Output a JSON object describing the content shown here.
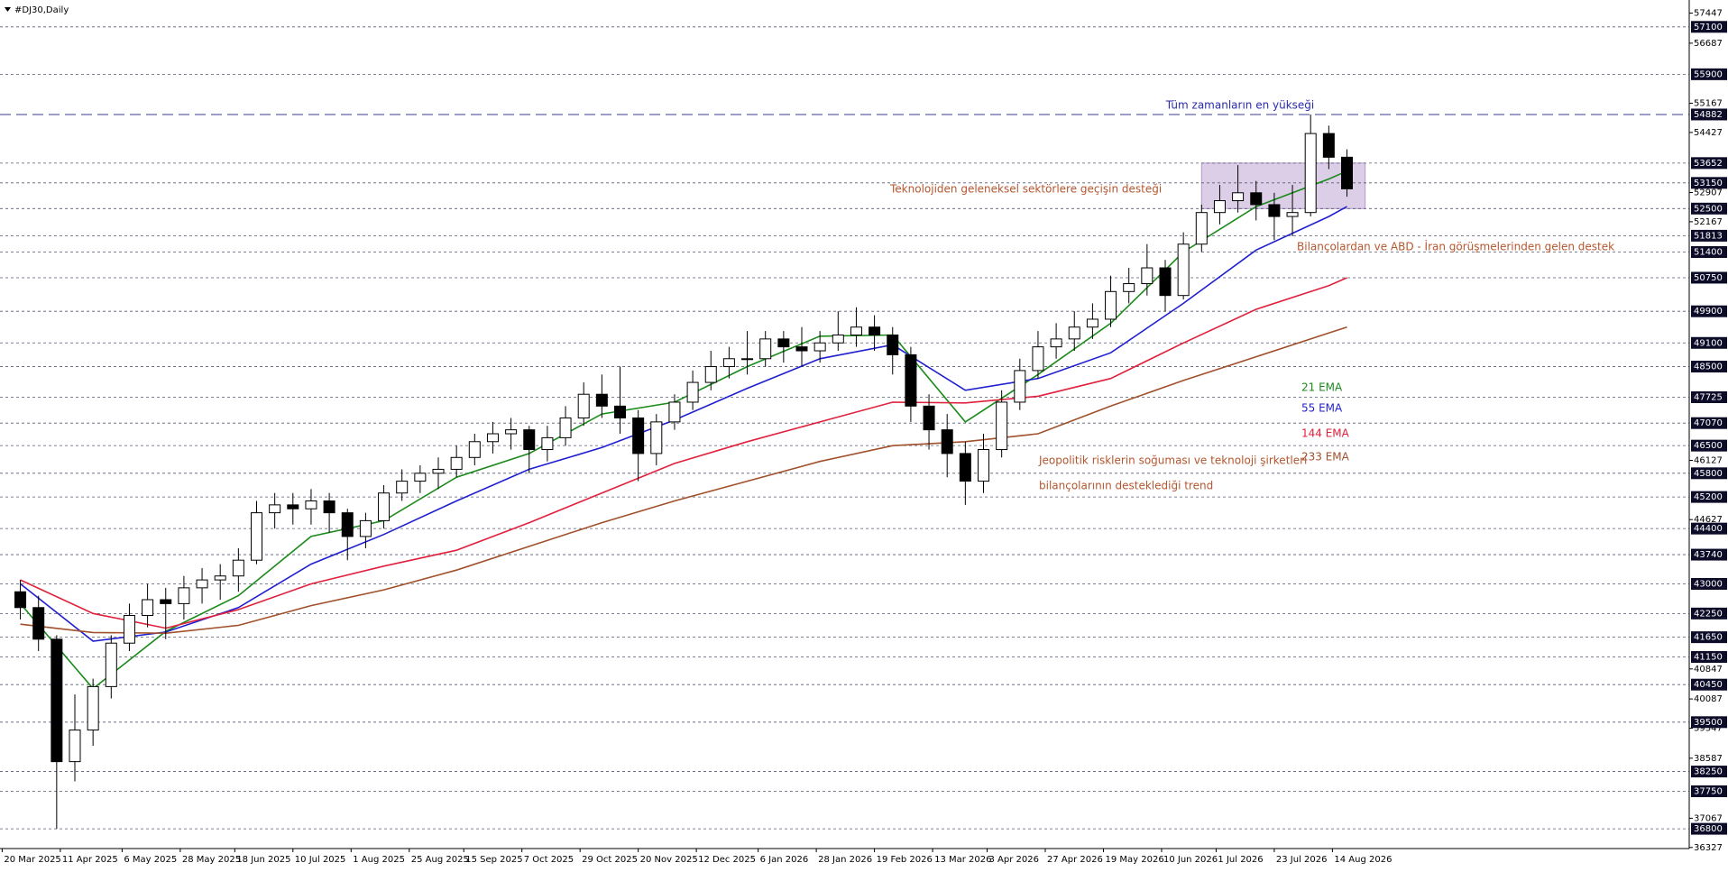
{
  "chart_data": {
    "type": "candlestick",
    "title": "#DJ30,Daily",
    "x": [
      "2025-03-27",
      "2025-04-03",
      "2025-04-10",
      "2025-04-17",
      "2025-04-24",
      "2025-05-01",
      "2025-05-08",
      "2025-05-15",
      "2025-05-22",
      "2025-05-29",
      "2025-06-05",
      "2025-06-12",
      "2025-06-19",
      "2025-06-26",
      "2025-07-03",
      "2025-07-10",
      "2025-07-17",
      "2025-07-24",
      "2025-07-31",
      "2025-08-07",
      "2025-08-14",
      "2025-08-21",
      "2025-08-28",
      "2025-09-04",
      "2025-09-11",
      "2025-09-18",
      "2025-09-25",
      "2025-10-02",
      "2025-10-09",
      "2025-10-16",
      "2025-10-23",
      "2025-10-30",
      "2025-11-06",
      "2025-11-13",
      "2025-11-20",
      "2025-11-27",
      "2025-12-04",
      "2025-12-11",
      "2025-12-18",
      "2025-12-25",
      "2026-01-01",
      "2026-01-08",
      "2026-01-15",
      "2026-01-22",
      "2026-01-29",
      "2026-02-05",
      "2026-02-12",
      "2026-02-19",
      "2026-02-26",
      "2026-03-05",
      "2026-03-12",
      "2026-03-19",
      "2026-03-26",
      "2026-04-02",
      "2026-04-09",
      "2026-04-16",
      "2026-04-23",
      "2026-04-30",
      "2026-05-07",
      "2026-05-14",
      "2026-05-21",
      "2026-05-28",
      "2026-06-04",
      "2026-06-11",
      "2026-06-18",
      "2026-06-25",
      "2026-07-02",
      "2026-07-09",
      "2026-07-16",
      "2026-07-23",
      "2026-07-30",
      "2026-08-06",
      "2026-08-13",
      "2026-08-20"
    ],
    "open": [
      42800,
      42400,
      41600,
      38500,
      39300,
      40400,
      41500,
      42200,
      42600,
      42500,
      42900,
      43100,
      43200,
      43600,
      44800,
      45000,
      44900,
      45100,
      44800,
      44200,
      44600,
      45300,
      45600,
      45800,
      45900,
      46200,
      46600,
      46800,
      46900,
      46400,
      46700,
      47200,
      47800,
      47500,
      47200,
      46300,
      47100,
      47600,
      48100,
      48500,
      48700,
      48700,
      49200,
      49000,
      48900,
      49100,
      49300,
      49500,
      49300,
      48800,
      47500,
      46900,
      46300,
      45600,
      46400,
      47600,
      48400,
      49000,
      49200,
      49500,
      49700,
      50400,
      50600,
      51000,
      50300,
      51600,
      52400,
      52700,
      52900,
      52600,
      52300,
      52400,
      54400,
      53800
    ],
    "high": [
      43100,
      42700,
      41700,
      40200,
      40600,
      41700,
      42500,
      43000,
      42900,
      43200,
      43400,
      43500,
      43900,
      45100,
      45300,
      45300,
      45400,
      45300,
      44900,
      44800,
      45500,
      45900,
      46000,
      46200,
      46500,
      46800,
      47100,
      47200,
      47000,
      47000,
      47500,
      48100,
      48300,
      48500,
      47400,
      47300,
      47800,
      48400,
      48900,
      49000,
      49400,
      49400,
      49400,
      49500,
      49400,
      49900,
      50000,
      49800,
      49500,
      49000,
      47800,
      47300,
      46600,
      46800,
      47900,
      48700,
      49400,
      49600,
      49900,
      50100,
      50800,
      51000,
      51600,
      51200,
      51900,
      52600,
      53100,
      53600,
      53200,
      52900,
      53100,
      54882,
      54600,
      54000
    ],
    "low": [
      42100,
      41300,
      36800,
      38000,
      38900,
      40100,
      41300,
      41900,
      41600,
      42100,
      42500,
      42600,
      42800,
      43500,
      44400,
      44500,
      44500,
      44300,
      43600,
      43900,
      44400,
      45100,
      45300,
      45400,
      45700,
      46000,
      46300,
      46400,
      45800,
      46100,
      46500,
      47000,
      47200,
      46800,
      45600,
      46000,
      46900,
      47400,
      47900,
      48200,
      48300,
      48500,
      48600,
      48500,
      48600,
      48900,
      49000,
      48900,
      48300,
      47100,
      46400,
      45700,
      45000,
      45300,
      46200,
      47400,
      48200,
      48700,
      48900,
      49200,
      49500,
      50100,
      50300,
      49900,
      50200,
      51400,
      52100,
      52400,
      52200,
      51700,
      51800,
      52300,
      53500,
      52800
    ],
    "close": [
      42400,
      41600,
      38500,
      39300,
      40400,
      41500,
      42200,
      42600,
      42500,
      42900,
      43100,
      43200,
      43600,
      44800,
      45000,
      44900,
      45100,
      44800,
      44200,
      44600,
      45300,
      45600,
      45800,
      45900,
      46200,
      46600,
      46800,
      46900,
      46400,
      46700,
      47200,
      47800,
      47500,
      47200,
      46300,
      47100,
      47600,
      48100,
      48500,
      48700,
      48700,
      49200,
      49000,
      48900,
      49100,
      49300,
      49500,
      49300,
      48800,
      47500,
      46900,
      46300,
      45600,
      46400,
      47600,
      48400,
      49000,
      49200,
      49500,
      49700,
      50400,
      50600,
      51000,
      50300,
      51600,
      52400,
      52700,
      52900,
      52600,
      52300,
      52400,
      54400,
      53800,
      53000
    ],
    "series": [
      {
        "name": "21 EMA",
        "color": "#1a8a1a",
        "x": [
          "2025-03-27",
          "2025-04-24",
          "2025-05-22",
          "2025-06-19",
          "2025-07-17",
          "2025-08-14",
          "2025-09-11",
          "2025-10-09",
          "2025-11-06",
          "2025-12-04",
          "2026-01-01",
          "2026-01-29",
          "2026-02-26",
          "2026-03-26",
          "2026-04-23",
          "2026-05-21",
          "2026-06-18",
          "2026-07-16",
          "2026-08-13",
          "2026-08-20"
        ],
        "values": [
          42500,
          40350,
          41800,
          42700,
          44200,
          44600,
          45700,
          46300,
          47300,
          47600,
          48500,
          49270,
          49300,
          47100,
          48300,
          49600,
          51400,
          52550,
          53250,
          53450
        ]
      },
      {
        "name": "55 EMA",
        "color": "#1f1fd0",
        "x": [
          "2025-03-27",
          "2025-04-24",
          "2025-05-22",
          "2025-06-19",
          "2025-07-17",
          "2025-08-14",
          "2025-09-11",
          "2025-10-09",
          "2025-11-06",
          "2025-12-04",
          "2026-01-01",
          "2026-01-29",
          "2026-02-26",
          "2026-03-26",
          "2026-04-23",
          "2026-05-21",
          "2026-06-18",
          "2026-07-16",
          "2026-08-13",
          "2026-08-20"
        ],
        "values": [
          43000,
          41550,
          41780,
          42400,
          43500,
          44250,
          45100,
          45900,
          46450,
          47150,
          47950,
          48700,
          49050,
          47900,
          48200,
          48850,
          50100,
          51450,
          52300,
          52550
        ]
      },
      {
        "name": "144 EMA",
        "color": "#e0203c",
        "x": [
          "2025-03-27",
          "2025-04-24",
          "2025-05-22",
          "2025-06-19",
          "2025-07-17",
          "2025-08-14",
          "2025-09-11",
          "2025-10-09",
          "2025-11-06",
          "2025-12-04",
          "2026-01-01",
          "2026-01-29",
          "2026-02-26",
          "2026-03-26",
          "2026-04-23",
          "2026-05-21",
          "2026-06-18",
          "2026-07-16",
          "2026-08-13",
          "2026-08-20"
        ],
        "values": [
          43100,
          42250,
          41880,
          42350,
          43000,
          43450,
          43850,
          44550,
          45300,
          46050,
          46600,
          47100,
          47600,
          47580,
          47750,
          48200,
          49100,
          49950,
          50550,
          50750
        ]
      },
      {
        "name": "233 EMA",
        "color": "#a0502a",
        "x": [
          "2025-03-27",
          "2025-04-24",
          "2025-05-22",
          "2025-06-19",
          "2025-07-17",
          "2025-08-14",
          "2025-09-11",
          "2025-10-09",
          "2025-11-06",
          "2025-12-04",
          "2026-01-01",
          "2026-01-29",
          "2026-02-26",
          "2026-03-26",
          "2026-04-23",
          "2026-05-21",
          "2026-06-18",
          "2026-07-16",
          "2026-08-13",
          "2026-08-20"
        ],
        "values": [
          41980,
          41770,
          41750,
          41950,
          42450,
          42850,
          43350,
          43950,
          44550,
          45100,
          45600,
          46100,
          46500,
          46600,
          46800,
          47500,
          48150,
          48750,
          49350,
          49500
        ]
      }
    ],
    "ylim": [
      36300,
      57780
    ],
    "yticks": [
      57447,
      56687,
      55167,
      54427,
      52907,
      52167,
      46127,
      44627,
      40847,
      40087,
      39347,
      38587,
      37067,
      36327
    ],
    "levels": [
      57100,
      55900,
      53652,
      53150,
      52500,
      51813,
      51400,
      50750,
      49900,
      49100,
      48500,
      47725,
      47070,
      46500,
      45800,
      45200,
      44400,
      43740,
      43000,
      42250,
      41650,
      41150,
      40450,
      39500,
      38250,
      37750,
      36800
    ],
    "ath": {
      "value": 54882,
      "label": "Tüm zamanların en yükseği",
      "color": "#2a2ab0"
    },
    "zone": {
      "top": 53652,
      "bottom": 52500,
      "start": "2026-06-25",
      "end": "2026-08-27",
      "color": "#d2bde0"
    },
    "xticks": [
      {
        "value": "2025-03-20",
        "label": "20 Mar 2025"
      },
      {
        "value": "2025-04-11",
        "label": "11 Apr 2025"
      },
      {
        "value": "2025-05-06",
        "label": "6 May 2025"
      },
      {
        "value": "2025-05-28",
        "label": "28 May 2025"
      },
      {
        "value": "2025-06-18",
        "label": "18 Jun 2025"
      },
      {
        "value": "2025-07-10",
        "label": "10 Jul 2025"
      },
      {
        "value": "2025-08-01",
        "label": "1 Aug 2025"
      },
      {
        "value": "2025-08-25",
        "label": "25 Aug 2025"
      },
      {
        "value": "2025-09-15",
        "label": "15 Sep 2025"
      },
      {
        "value": "2025-10-07",
        "label": "7 Oct 2025"
      },
      {
        "value": "2025-10-29",
        "label": "29 Oct 2025"
      },
      {
        "value": "2025-11-20",
        "label": "20 Nov 2025"
      },
      {
        "value": "2025-12-12",
        "label": "12 Dec 2025"
      },
      {
        "value": "2026-01-06",
        "label": "6 Jan 2026"
      },
      {
        "value": "2026-01-28",
        "label": "28 Jan 2026"
      },
      {
        "value": "2026-02-19",
        "label": "19 Feb 2026"
      },
      {
        "value": "2026-03-13",
        "label": "13 Mar 2026"
      },
      {
        "value": "2026-04-03",
        "label": "3 Apr 2026"
      },
      {
        "value": "2026-04-27",
        "label": "27 Apr 2026"
      },
      {
        "value": "2026-05-19",
        "label": "19 May 2026"
      },
      {
        "value": "2026-06-10",
        "label": "10 Jun 2026"
      },
      {
        "value": "2026-07-01",
        "label": "1 Jul 2026"
      },
      {
        "value": "2026-07-23",
        "label": "23 Jul 2026"
      },
      {
        "value": "2026-08-14",
        "label": "14 Aug 2026"
      }
    ],
    "annotations": [
      {
        "text": "Teknolojiden geleneksel sektörlere geçişin desteği",
        "color": "#b5562f"
      },
      {
        "text": "Bilançolardan ve ABD - İran görüşmelerinden gelen destek",
        "color": "#b5562f"
      },
      {
        "text": "Jeopolitik risklerin soğuması ve teknoloji şirketleri",
        "color": "#b5562f"
      },
      {
        "text": "bilançolarının desteklediği trend",
        "color": "#b5562f"
      }
    ]
  }
}
